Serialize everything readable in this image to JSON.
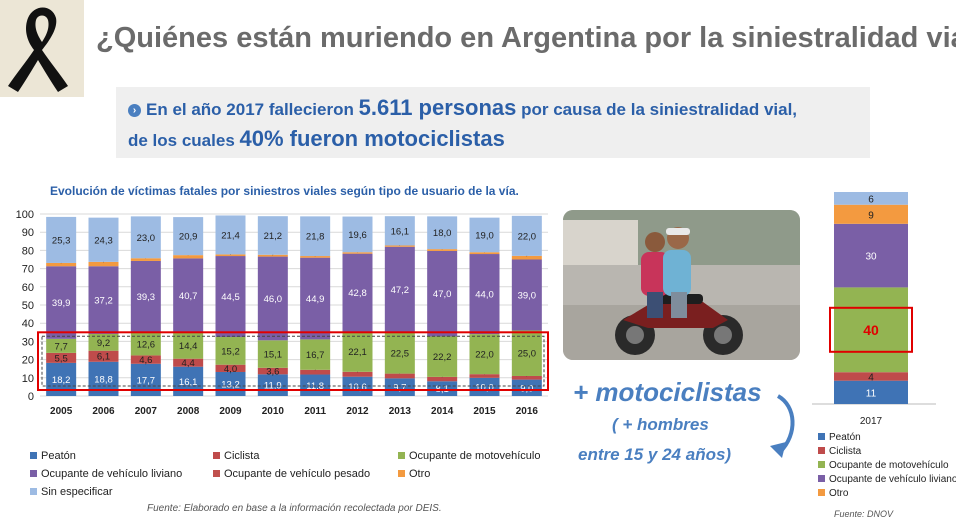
{
  "header": {
    "title": "¿Quiénes están muriendo en Argentina por la siniestralidad vial?"
  },
  "banner": {
    "line1_pre": "En el año 2017 fallecieron",
    "line1_big": "5.611 personas",
    "line1_post": "por causa de la siniestralidad vial,",
    "line2_pre": "de los cuales",
    "line2_big": "40% fueron motociclistas"
  },
  "colors": {
    "peaton": "#3f73b5",
    "ciclista": "#bf4b4b",
    "moto": "#93b452",
    "liviano": "#7a5fa6",
    "pesado": "#c0504d",
    "otro": "#f39a40",
    "sin_especificar": "#9dbbe3",
    "highlight": "#e00000",
    "accent_blue": "#2b5fa8"
  },
  "chart_data": [
    {
      "type": "bar",
      "stacked": true,
      "title": "Evolución de víctimas fatales por siniestros viales según tipo de usuario de la vía.",
      "categories": [
        "2005",
        "2006",
        "2007",
        "2008",
        "2009",
        "2010",
        "2011",
        "2012",
        "2013",
        "2014",
        "2015",
        "2016"
      ],
      "ylim": [
        0,
        100
      ],
      "yticks": [
        0,
        10,
        20,
        30,
        40,
        50,
        60,
        70,
        80,
        90,
        100
      ],
      "grid": true,
      "legend_position": "bottom",
      "series": [
        {
          "name": "Peatón",
          "color_key": "peaton",
          "values": [
            18.2,
            18.8,
            17.7,
            16.1,
            13.2,
            11.9,
            11.8,
            10.6,
            9.7,
            8.1,
            10.0,
            9.0
          ]
        },
        {
          "name": "Ciclista",
          "color_key": "ciclista",
          "values": [
            5.5,
            6.1,
            4.6,
            4.4,
            4.0,
            3.6,
            2.6,
            2.7,
            2.6,
            2.4,
            2.0,
            2.0
          ]
        },
        {
          "name": "Ocupante de motovehículo",
          "color_key": "moto",
          "values": [
            7.7,
            9.2,
            12.6,
            14.4,
            15.2,
            15.1,
            16.7,
            22.1,
            22.5,
            22.2,
            22.0,
            25.0
          ]
        },
        {
          "name": "Ocupante de vehículo liviano",
          "color_key": "liviano",
          "values": [
            39.9,
            37.2,
            39.3,
            40.7,
            44.5,
            46.0,
            44.9,
            42.8,
            47.2,
            47.0,
            44.0,
            39.0
          ]
        },
        {
          "name": "Ocupante de vehículo pesado",
          "color_key": "pesado",
          "values": [
            null,
            null,
            null,
            null,
            null,
            null,
            null,
            null,
            null,
            null,
            null,
            null
          ]
        },
        {
          "name": "Otro",
          "color_key": "otro",
          "values": [
            1.8,
            2.4,
            1.5,
            1.8,
            0.9,
            1.0,
            0.9,
            0.8,
            0.7,
            1.0,
            1.0,
            2.0
          ]
        },
        {
          "name": "Sin especificar",
          "color_key": "sin_especificar",
          "values": [
            25.3,
            24.3,
            23.0,
            20.9,
            21.4,
            21.2,
            21.8,
            19.6,
            16.1,
            18.0,
            19.0,
            22.0
          ]
        }
      ],
      "highlight": "Peatón + Ciclista + Ocupante de motovehículo"
    },
    {
      "type": "bar",
      "stacked": true,
      "categories": [
        "2017"
      ],
      "ylim": [
        0,
        100
      ],
      "legend_position": "bottom",
      "series": [
        {
          "name": "Peatón",
          "color_key": "peaton",
          "values": [
            11
          ]
        },
        {
          "name": "Ciclista",
          "color_key": "ciclista",
          "values": [
            4
          ]
        },
        {
          "name": "Ocupante de motovehículo",
          "color_key": "moto",
          "values": [
            40
          ]
        },
        {
          "name": "Ocupante de vehículo liviano",
          "color_key": "liviano",
          "values": [
            30
          ]
        },
        {
          "name": "Otro",
          "color_key": "otro",
          "values": [
            9
          ]
        },
        {
          "name": "",
          "color_key": "sin_especificar",
          "values": [
            6
          ]
        }
      ],
      "highlight": "Ocupante de motovehículo"
    }
  ],
  "legend_main": [
    "Peatón",
    "Ciclista",
    "Ocupante de motovehículo",
    "Ocupante de vehículo liviano",
    "Ocupante de vehículo pesado",
    "Otro",
    "Sin especificar"
  ],
  "legend_2017": [
    "Peatón",
    "Ciclista",
    "Ocupante de motovehículo",
    "Ocupante de vehículo liviano",
    "Otro"
  ],
  "source_main": "Fuente: Elaborado en base a la información recolectada por DEIS.",
  "source_2017": "Fuente: DNOV",
  "callout": {
    "moto": "+ motociclistas",
    "hombres1": "( + hombres",
    "hombres2": "entre 15 y 24 años)"
  }
}
